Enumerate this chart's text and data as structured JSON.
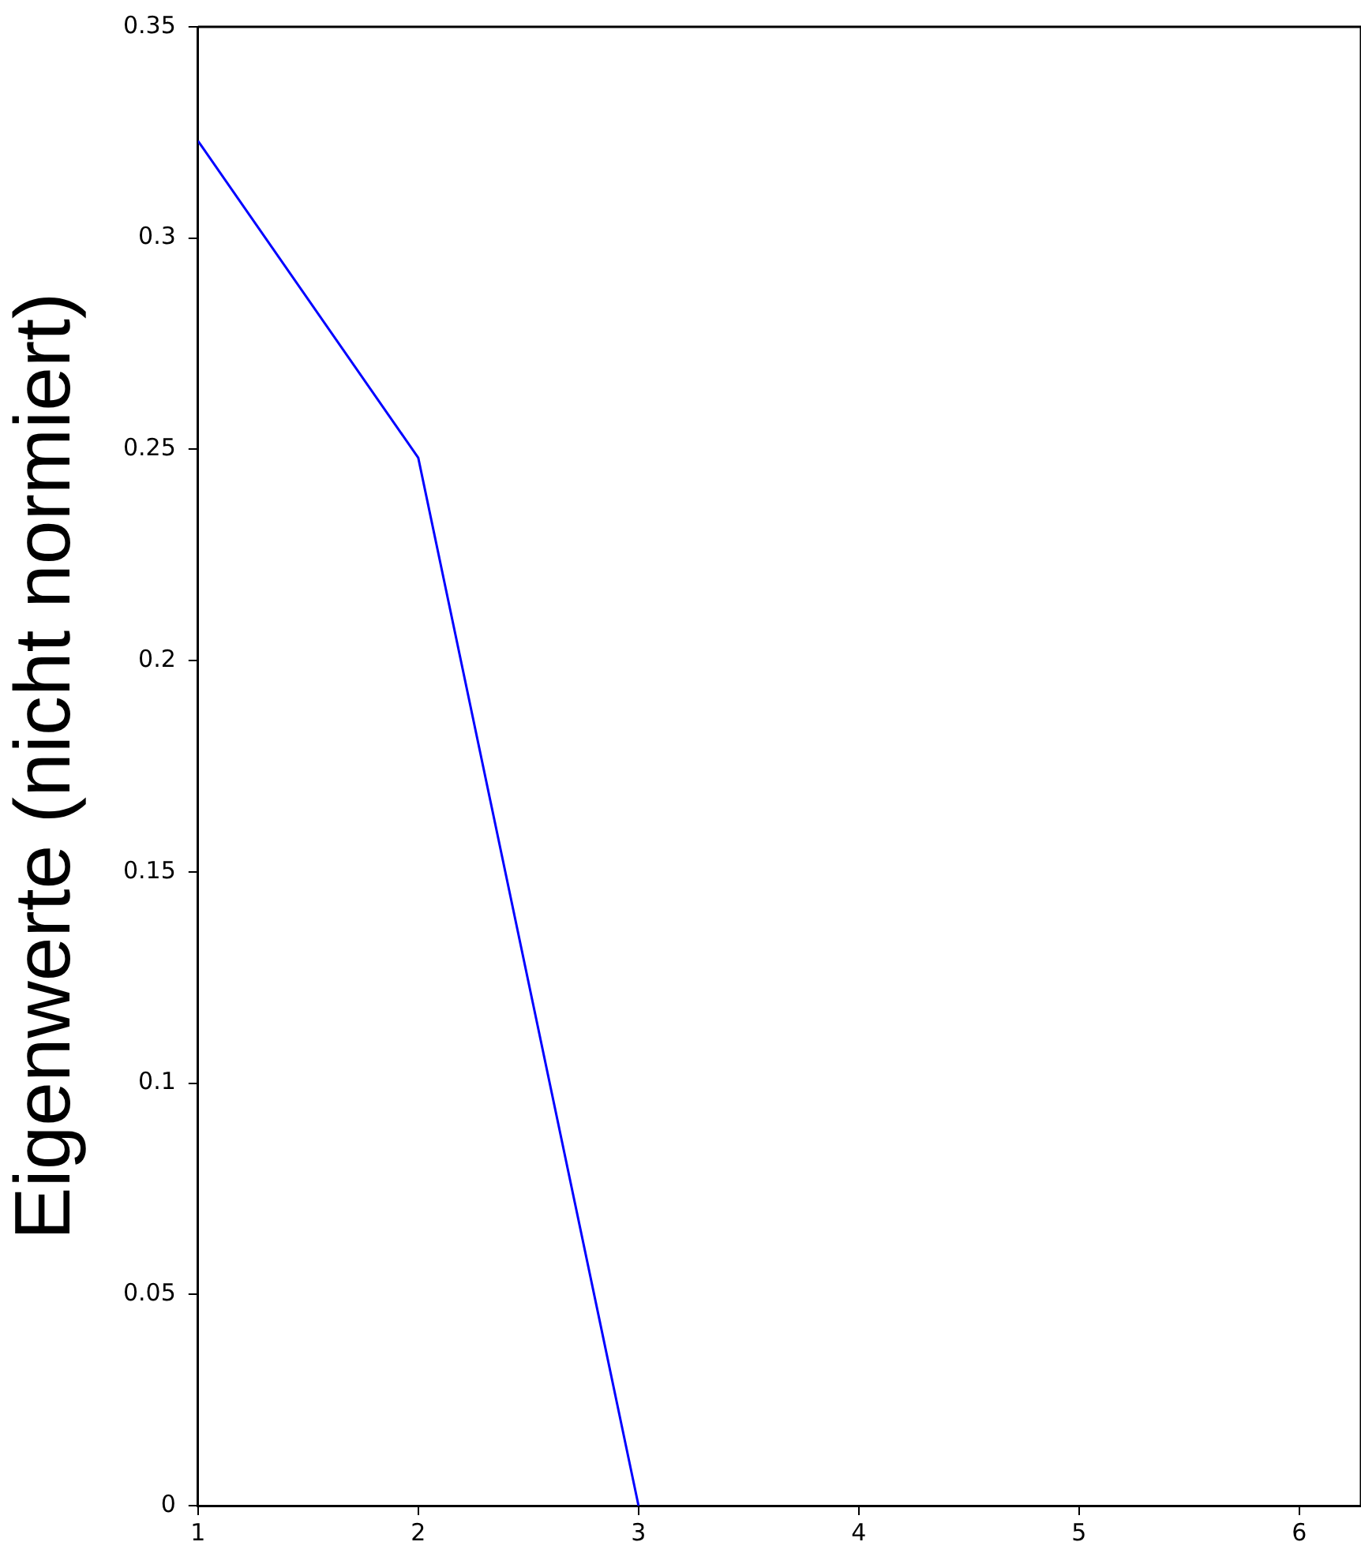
{
  "chart_data": {
    "type": "line",
    "ylabel": "Eigenwerte (nicht normiert)",
    "x": [
      1,
      2,
      3
    ],
    "series": [
      {
        "color": "#0000ff",
        "values": [
          0.323,
          0.248,
          0
        ]
      }
    ],
    "xlim": [
      1,
      6.28
    ],
    "ylim": [
      0,
      0.35
    ],
    "xticks": [
      1,
      2,
      3,
      4,
      5,
      6
    ],
    "yticks": [
      0,
      0.05,
      0.1,
      0.15,
      0.2,
      0.25,
      0.3,
      0.35
    ],
    "grid": false,
    "legend": false,
    "marker": "none",
    "line_style": "solid"
  }
}
